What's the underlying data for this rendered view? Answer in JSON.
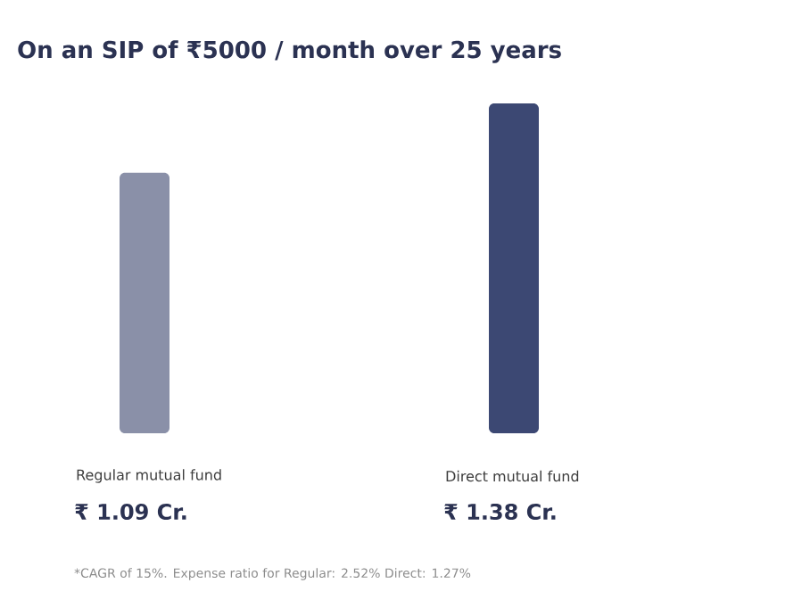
{
  "chart_data": {
    "type": "bar",
    "title": "On an SIP of ₹5000 / month over 25 years",
    "categories": [
      "Regular mutual fund",
      "Direct mutual fund"
    ],
    "values": [
      1.09,
      1.38
    ],
    "colors": [
      "#8a90a8",
      "#3c4873"
    ],
    "value_labels": [
      "₹ 1.09 Cr.",
      "₹ 1.38 Cr."
    ],
    "annotations": [
      "*CAGR of 15%. Expense ratio for Regular: 2.52% Direct: 1.27%"
    ]
  }
}
